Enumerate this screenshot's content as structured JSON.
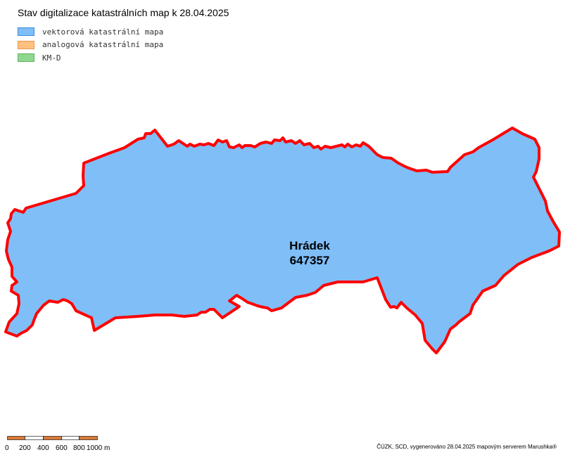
{
  "title": "Stav digitalizace katastrálních map k 28.04.2025",
  "legend": [
    {
      "label": "vektorová katastrální mapa",
      "fill": "#80bef8",
      "stroke": "#3a8ad8"
    },
    {
      "label": "analogová katastrální mapa",
      "fill": "#ffc080",
      "stroke": "#e89a50"
    },
    {
      "label": "KM-D",
      "fill": "#90d890",
      "stroke": "#60b060"
    }
  ],
  "map": {
    "area_name": "Hrádek",
    "area_code": "647357",
    "area_fill": "#80bef8",
    "boundary_color": "#ff0000"
  },
  "scale": {
    "labels": [
      "0",
      "200",
      "400",
      "600",
      "800",
      "1000 m"
    ],
    "colors": [
      "#d97a3a",
      "#ffffff"
    ]
  },
  "footer": "ČÚZK, SCD, vygenerováno 28.04.2025 mapovým serverem Marushka®"
}
